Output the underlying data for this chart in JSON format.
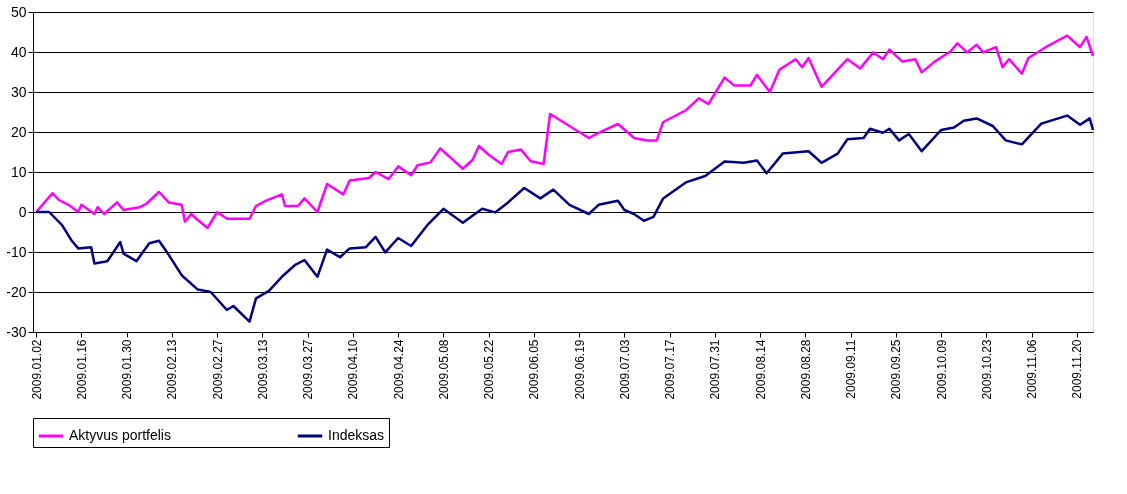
{
  "chart_data": {
    "type": "line",
    "ylim": [
      -30,
      50
    ],
    "yticks": [
      -30,
      -20,
      -10,
      0,
      10,
      20,
      30,
      40,
      50
    ],
    "xlim": [
      "2009-01-01",
      "2009-11-25"
    ],
    "xticks": [
      {
        "value": "2009-01-02",
        "label": "2009.01.02"
      },
      {
        "value": "2009-01-16",
        "label": "2009.01.16"
      },
      {
        "value": "2009-01-30",
        "label": "2009.01.30"
      },
      {
        "value": "2009-02-13",
        "label": "2009.02.13"
      },
      {
        "value": "2009-02-27",
        "label": "2009.02.27"
      },
      {
        "value": "2009-03-13",
        "label": "2009.03.13"
      },
      {
        "value": "2009-03-27",
        "label": "2009.03.27"
      },
      {
        "value": "2009-04-10",
        "label": "2009.04.10"
      },
      {
        "value": "2009-04-24",
        "label": "2009.04.24"
      },
      {
        "value": "2009-05-08",
        "label": "2009.05.08"
      },
      {
        "value": "2009-05-22",
        "label": "2009.05.22"
      },
      {
        "value": "2009-06-05",
        "label": "2009.06.05"
      },
      {
        "value": "2009-06-19",
        "label": "2009.06.19"
      },
      {
        "value": "2009-07-03",
        "label": "2009.07.03"
      },
      {
        "value": "2009-07-17",
        "label": "2009.07.17"
      },
      {
        "value": "2009-07-31",
        "label": "2009.07.31"
      },
      {
        "value": "2009-08-14",
        "label": "2009.08.14"
      },
      {
        "value": "2009-08-28",
        "label": "2009.08.28"
      },
      {
        "value": "2009-09-11",
        "label": "2009.09.11"
      },
      {
        "value": "2009-09-25",
        "label": "2009.09.25"
      },
      {
        "value": "2009-10-09",
        "label": "2009.10.09"
      },
      {
        "value": "2009-10-23",
        "label": "2009.10.23"
      },
      {
        "value": "2009-11-06",
        "label": "2009.11.06"
      },
      {
        "value": "2009-11-20",
        "label": "2009.11.20"
      }
    ],
    "grid": "y",
    "legend": "bottom",
    "series": [
      {
        "name": "Aktyvus portfelis",
        "color": "#ff00ff",
        "x": [
          "2009-01-02",
          "2009-01-07",
          "2009-01-09",
          "2009-01-12",
          "2009-01-15",
          "2009-01-16",
          "2009-01-20",
          "2009-01-21",
          "2009-01-23",
          "2009-01-27",
          "2009-01-29",
          "2009-02-03",
          "2009-02-05",
          "2009-02-09",
          "2009-02-12",
          "2009-02-16",
          "2009-02-17",
          "2009-02-19",
          "2009-02-21",
          "2009-02-24",
          "2009-02-27",
          "2009-03-02",
          "2009-03-09",
          "2009-03-11",
          "2009-03-14",
          "2009-03-19",
          "2009-03-20",
          "2009-03-24",
          "2009-03-26",
          "2009-03-30",
          "2009-04-02",
          "2009-04-07",
          "2009-04-09",
          "2009-04-15",
          "2009-04-17",
          "2009-04-21",
          "2009-04-24",
          "2009-04-28",
          "2009-04-30",
          "2009-05-04",
          "2009-05-07",
          "2009-05-14",
          "2009-05-17",
          "2009-05-19",
          "2009-05-22",
          "2009-05-26",
          "2009-05-28",
          "2009-06-01",
          "2009-06-04",
          "2009-06-08",
          "2009-06-10",
          "2009-06-11",
          "2009-06-16",
          "2009-06-22",
          "2009-06-25",
          "2009-07-01",
          "2009-07-06",
          "2009-07-10",
          "2009-07-13",
          "2009-07-15",
          "2009-07-22",
          "2009-07-26",
          "2009-07-29",
          "2009-08-03",
          "2009-08-06",
          "2009-08-11",
          "2009-08-13",
          "2009-08-17",
          "2009-08-20",
          "2009-08-25",
          "2009-08-27",
          "2009-08-29",
          "2009-09-02",
          "2009-09-10",
          "2009-09-14",
          "2009-09-18",
          "2009-09-21",
          "2009-09-23",
          "2009-09-27",
          "2009-10-01",
          "2009-10-03",
          "2009-10-07",
          "2009-10-12",
          "2009-10-14",
          "2009-10-17",
          "2009-10-20",
          "2009-10-22",
          "2009-10-26",
          "2009-10-28",
          "2009-10-30",
          "2009-11-03",
          "2009-11-05",
          "2009-11-11",
          "2009-11-17",
          "2009-11-21",
          "2009-11-23",
          "2009-11-25"
        ],
        "values": [
          0,
          4.7,
          3,
          1.8,
          0,
          1.8,
          -0.5,
          1.2,
          -0.5,
          2.4,
          0.5,
          1.2,
          2,
          5,
          2.4,
          1.8,
          -2.4,
          -0.5,
          -2,
          -4,
          0,
          -1.7,
          -1.7,
          1.5,
          2.8,
          4.4,
          1.5,
          1.5,
          3.4,
          0,
          7,
          4.4,
          7.9,
          8.5,
          10,
          8.2,
          11.4,
          9.2,
          11.7,
          12.4,
          15.9,
          10.8,
          13,
          16.5,
          14.3,
          12,
          15,
          15.6,
          12.7,
          12,
          24.5,
          24,
          21.5,
          18.5,
          19.8,
          22,
          18.5,
          17.9,
          17.9,
          22.5,
          25.4,
          28.4,
          27,
          33.6,
          31.6,
          31.6,
          34.3,
          30,
          35.6,
          38.2,
          36.2,
          38.5,
          31.3,
          38.2,
          35.9,
          39.9,
          38.2,
          40.6,
          37.6,
          38.2,
          34.9,
          37.6,
          40.2,
          42.2,
          39.9,
          41.8,
          39.9,
          41.2,
          36.2,
          38.2,
          34.6,
          38.5,
          41.5,
          44.1,
          41.2,
          43.8,
          39
        ]
      },
      {
        "name": "Indeksas",
        "color": "#000080",
        "x": [
          "2009-01-02",
          "2009-01-06",
          "2009-01-10",
          "2009-01-13",
          "2009-01-15",
          "2009-01-19",
          "2009-01-20",
          "2009-01-24",
          "2009-01-28",
          "2009-01-29",
          "2009-02-02",
          "2009-02-06",
          "2009-02-09",
          "2009-02-12",
          "2009-02-16",
          "2009-02-21",
          "2009-02-25",
          "2009-03-02",
          "2009-03-04",
          "2009-03-09",
          "2009-03-11",
          "2009-03-15",
          "2009-03-19",
          "2009-03-23",
          "2009-03-26",
          "2009-03-30",
          "2009-04-02",
          "2009-04-06",
          "2009-04-09",
          "2009-04-14",
          "2009-04-17",
          "2009-04-20",
          "2009-04-24",
          "2009-04-28",
          "2009-05-03",
          "2009-05-08",
          "2009-05-14",
          "2009-05-20",
          "2009-05-24",
          "2009-05-28",
          "2009-06-02",
          "2009-06-07",
          "2009-06-11",
          "2009-06-16",
          "2009-06-22",
          "2009-06-25",
          "2009-07-01",
          "2009-07-03",
          "2009-07-06",
          "2009-07-09",
          "2009-07-12",
          "2009-07-15",
          "2009-07-22",
          "2009-07-28",
          "2009-08-03",
          "2009-08-09",
          "2009-08-13",
          "2009-08-16",
          "2009-08-21",
          "2009-08-29",
          "2009-09-02",
          "2009-09-07",
          "2009-09-10",
          "2009-09-15",
          "2009-09-17",
          "2009-09-21",
          "2009-09-23",
          "2009-09-26",
          "2009-09-29",
          "2009-10-03",
          "2009-10-09",
          "2009-10-13",
          "2009-10-16",
          "2009-10-20",
          "2009-10-25",
          "2009-10-29",
          "2009-11-03",
          "2009-11-09",
          "2009-11-17",
          "2009-11-21",
          "2009-11-24",
          "2009-11-25"
        ],
        "values": [
          0,
          0,
          -3.3,
          -7.2,
          -9.1,
          -8.8,
          -12.9,
          -12.3,
          -7.5,
          -10.4,
          -12.3,
          -7.8,
          -7.2,
          -10.7,
          -15.8,
          -19.4,
          -20,
          -24.5,
          -23.5,
          -27.4,
          -21.6,
          -19.7,
          -16.2,
          -13.3,
          -12,
          -16.2,
          -9.4,
          -11.3,
          -9.1,
          -8.8,
          -6.2,
          -10.1,
          -6.5,
          -8.5,
          -3.3,
          0.8,
          -2.7,
          0.8,
          -0.1,
          2.4,
          6,
          3.4,
          5.6,
          1.8,
          -0.5,
          1.8,
          2.8,
          0.5,
          -0.5,
          -2.2,
          -1.2,
          3.4,
          7.4,
          9,
          12.6,
          12.3,
          12.9,
          9.7,
          14.6,
          15.2,
          12.3,
          14.6,
          18.2,
          18.5,
          20.8,
          19.8,
          20.8,
          17.9,
          19.5,
          15.2,
          20.5,
          21.1,
          22.8,
          23.4,
          21.5,
          17.9,
          16.9,
          22.1,
          24.1,
          21.8,
          23.4,
          20.5
        ]
      }
    ]
  }
}
